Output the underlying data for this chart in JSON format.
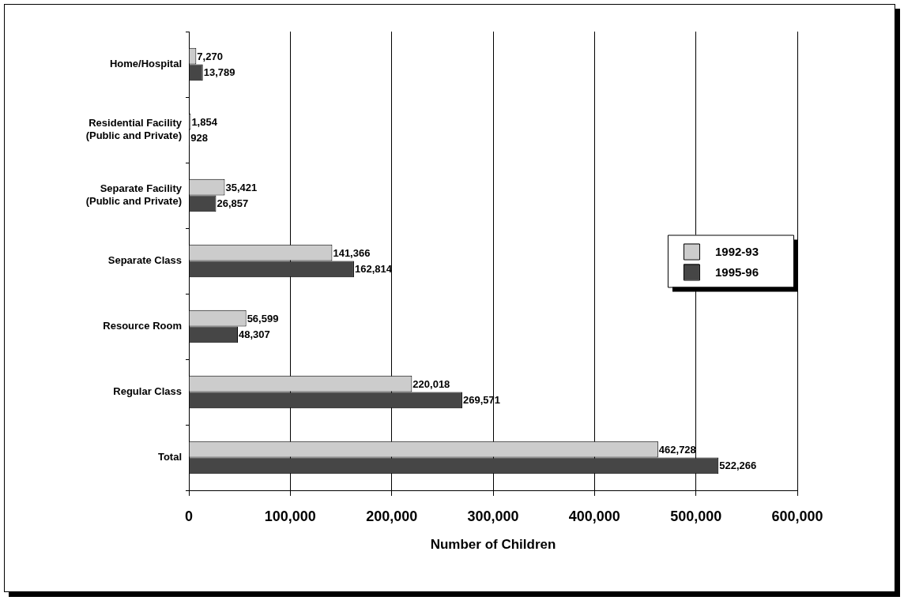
{
  "chart_data": {
    "type": "bar",
    "orientation": "horizontal",
    "xlabel": "Number of Children",
    "categories": [
      "Home/Hospital",
      "Residential Facility\n(Public and Private)",
      "Separate Facility\n(Public and Private)",
      "Separate Class",
      "Resource Room",
      "Regular Class",
      "Total"
    ],
    "series": [
      {
        "name": "1992-93",
        "color": "#cccccc",
        "values": [
          7270,
          1854,
          35421,
          141366,
          56599,
          220018,
          462728
        ],
        "value_labels": [
          "7,270",
          "1,854",
          "35,421",
          "141,366",
          "56,599",
          "220,018",
          "462,728"
        ]
      },
      {
        "name": "1995-96",
        "color": "#464646",
        "values": [
          13789,
          928,
          26857,
          162814,
          48307,
          269571,
          522266
        ],
        "value_labels": [
          "13,789",
          "928",
          "26,857",
          "162,814",
          "48,307",
          "269,571",
          "522,266"
        ]
      }
    ],
    "xlim": [
      0,
      600000
    ],
    "xticks": [
      0,
      {
        "value": 100000,
        "label": "100,000"
      },
      {
        "value": 200000,
        "label": "200,000"
      },
      {
        "value": 300000,
        "label": "300,000"
      },
      {
        "value": 400000,
        "label": "400,000"
      },
      {
        "value": 500000,
        "label": "500,000"
      },
      {
        "value": 600000,
        "label": "600,000"
      }
    ],
    "grid": "x",
    "legend": "right"
  }
}
